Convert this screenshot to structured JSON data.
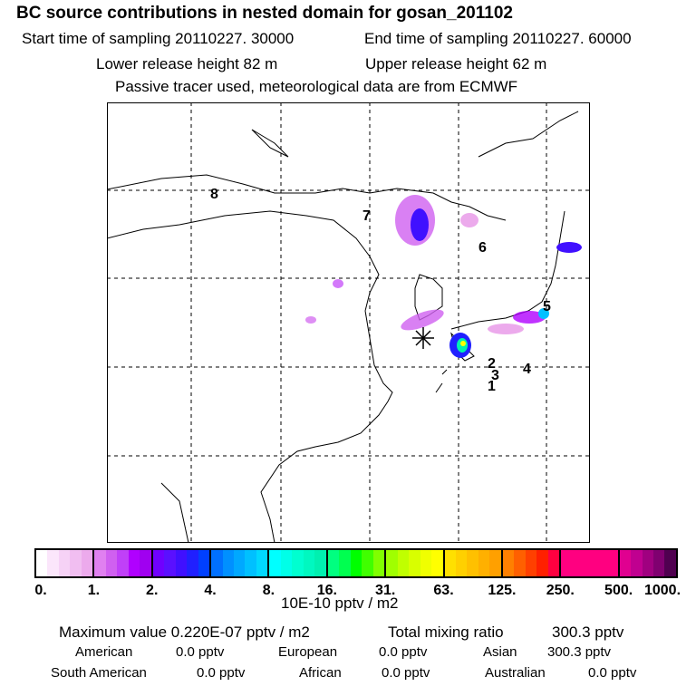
{
  "header": {
    "title": "BC  source contributions in nested domain for gosan_201102",
    "start_label": "Start time of sampling 20110227. 30000",
    "end_label": "End time of sampling 20110227. 60000",
    "lower_label": "Lower release height   82 m",
    "upper_label": "Upper release height   62 m",
    "note": "Passive tracer used, meteorological data are from ECMWF"
  },
  "chart_data": {
    "type": "heatmap",
    "title": "BC  source contributions in nested domain for gosan_201102",
    "region_labels": [
      "1",
      "2",
      "3",
      "4",
      "5",
      "6",
      "7",
      "8"
    ],
    "colorbar": {
      "ticks": [
        "0.",
        "1.",
        "2.",
        "4.",
        "8.",
        "16.",
        "31.",
        "63.",
        "125.",
        "250.",
        "500.",
        "1000."
      ],
      "unit": "10E-10 pptv / m2",
      "segments": [
        [
          "#ffffff",
          "#fbe6fb",
          "#f6d2f6",
          "#f1bef1",
          "#ecaaec"
        ],
        [
          "#e080f0",
          "#d060f0",
          "#c040f8",
          "#b000ff",
          "#a000f0"
        ],
        [
          "#7000ff",
          "#5a10ff",
          "#4010ff",
          "#2020ff",
          "#0040ff"
        ],
        [
          "#0070ff",
          "#0090ff",
          "#00a8ff",
          "#00c0ff",
          "#00d8ff"
        ],
        [
          "#00ffff",
          "#00ffe8",
          "#00ffd0",
          "#00f8c0",
          "#00f0b0"
        ],
        [
          "#00ff80",
          "#00ff50",
          "#00ff00",
          "#40ff00",
          "#80ff00"
        ],
        [
          "#a0ff00",
          "#c0ff00",
          "#d8ff00",
          "#f0ff00",
          "#ffff00"
        ],
        [
          "#ffe000",
          "#ffd000",
          "#ffc000",
          "#ffb000",
          "#ffa000"
        ],
        [
          "#ff8000",
          "#ff6000",
          "#ff4000",
          "#ff2000",
          "#ff0040"
        ],
        [
          "#ff0080",
          "#ff0080",
          "#ff0080",
          "#ff0080",
          "#ff0080"
        ],
        [
          "#e00090",
          "#c00090",
          "#a00080",
          "#800070",
          "#500050"
        ]
      ]
    }
  },
  "stats": {
    "max_label": "Maximum value  0.220E-07 pptv / m2",
    "total_label": "Total mixing ratio",
    "total_value": "300.3 pptv",
    "rows": [
      [
        {
          "k": "American",
          "v": "0.0 pptv"
        },
        {
          "k": "European",
          "v": "0.0 pptv"
        },
        {
          "k": "Asian",
          "v": "300.3 pptv"
        }
      ],
      [
        {
          "k": "South American",
          "v": "0.0 pptv"
        },
        {
          "k": "African",
          "v": "0.0 pptv"
        },
        {
          "k": "Australian",
          "v": "0.0 pptv"
        }
      ]
    ]
  }
}
